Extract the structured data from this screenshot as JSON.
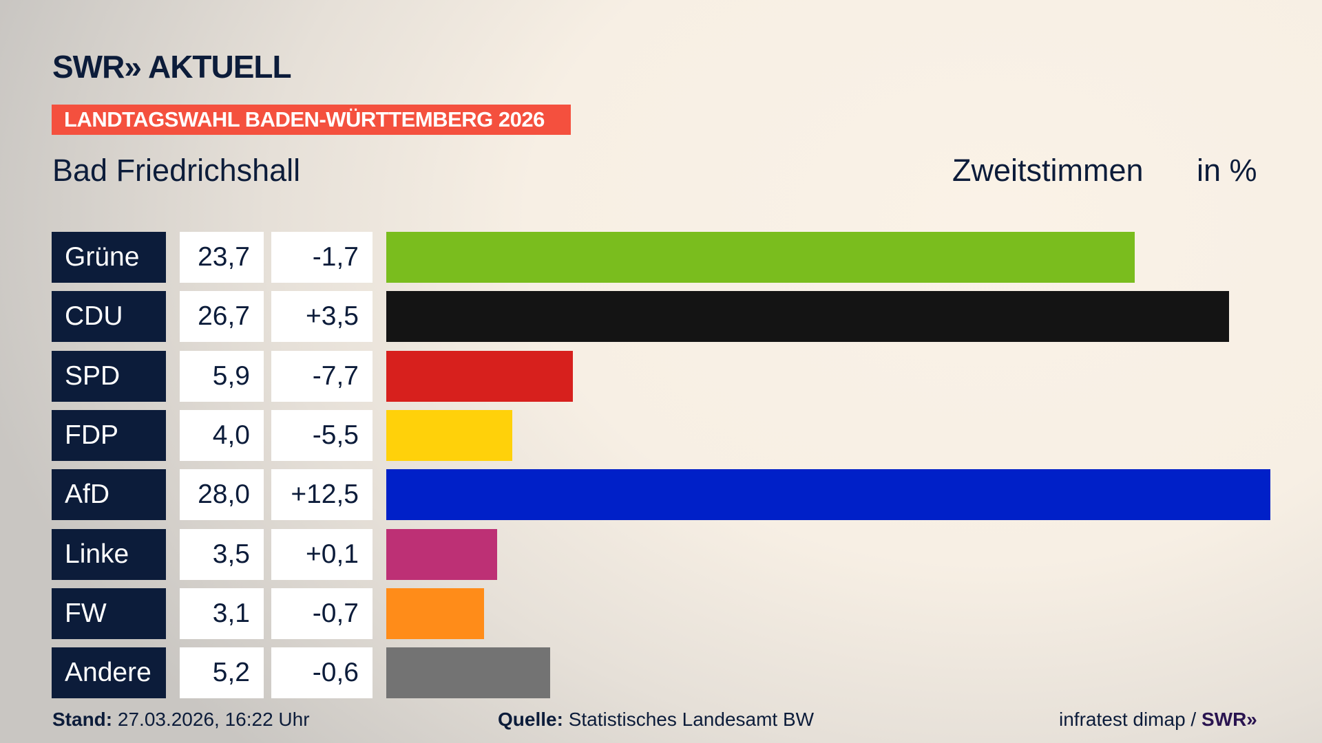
{
  "header": {
    "logo": "SWR» AKTUELL",
    "banner": "LANDTAGSWAHL BADEN-WÜRTTEMBERG 2026",
    "place": "Bad Friedrichshall",
    "metric": "Zweitstimmen",
    "unit": "in %"
  },
  "chart_data": {
    "type": "bar",
    "orientation": "horizontal",
    "categories": [
      "Grüne",
      "CDU",
      "SPD",
      "FDP",
      "AfD",
      "Linke",
      "FW",
      "Andere"
    ],
    "values": [
      23.7,
      26.7,
      5.9,
      4.0,
      28.0,
      3.5,
      3.1,
      5.2
    ],
    "value_labels": [
      "23,7",
      "26,7",
      "5,9",
      "4,0",
      "28,0",
      "3,5",
      "3,1",
      "5,2"
    ],
    "change_labels": [
      "-1,7",
      "+3,5",
      "-7,7",
      "-5,5",
      "+12,5",
      "+0,1",
      "-0,7",
      "-0,6"
    ],
    "colors": [
      "#7abd1e",
      "#141414",
      "#d7201d",
      "#ffd10a",
      "#0020c8",
      "#bd3075",
      "#ff8c19",
      "#737373"
    ],
    "xlim": [
      0,
      28.0
    ],
    "grid": false
  },
  "footer": {
    "stand_label": "Stand:",
    "stand_value": "27.03.2026, 16:22 Uhr",
    "source_label": "Quelle:",
    "source_value": "Statistisches Landesamt BW",
    "credit": "infratest dimap /",
    "credit_logo": "SWR»"
  },
  "colors": {
    "navy": "#0c1c3a",
    "banner": "#f4503e"
  }
}
